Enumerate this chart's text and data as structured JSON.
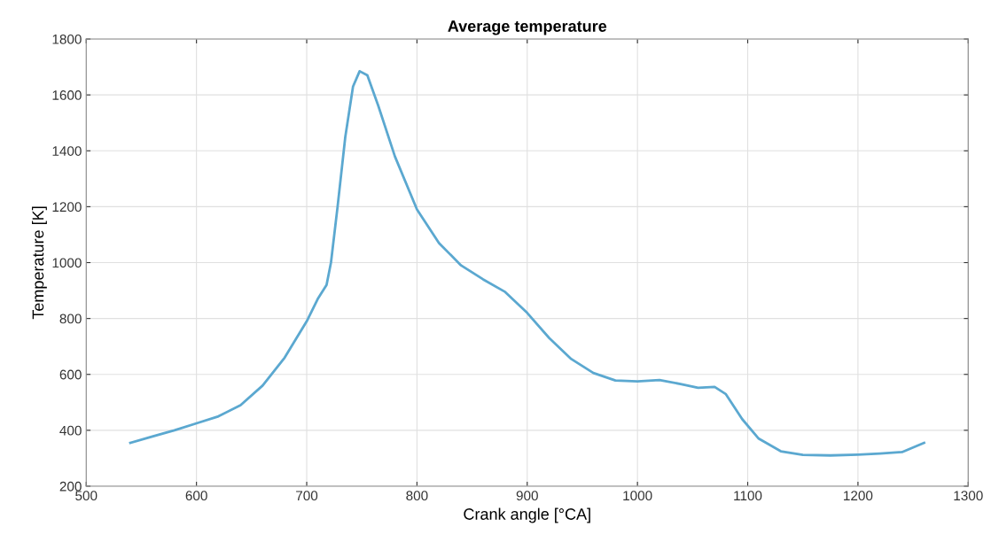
{
  "chart_data": {
    "type": "line",
    "title": "Average temperature",
    "xlabel": "Crank angle [°CA]",
    "ylabel": "Temperature [K]",
    "xlim": [
      500,
      1300
    ],
    "xticks": [
      500,
      600,
      700,
      800,
      900,
      1000,
      1100,
      1200,
      1300
    ],
    "ylim": [
      200,
      1800
    ],
    "yticks": [
      200,
      400,
      600,
      800,
      1000,
      1200,
      1400,
      1600,
      1800
    ],
    "grid": true,
    "series": [
      {
        "color": "#5ba8d0",
        "x": [
          540,
          560,
          580,
          600,
          620,
          640,
          660,
          680,
          700,
          710,
          718,
          722,
          728,
          735,
          742,
          748,
          755,
          765,
          780,
          800,
          820,
          840,
          860,
          880,
          900,
          920,
          940,
          960,
          980,
          1000,
          1020,
          1040,
          1055,
          1070,
          1080,
          1095,
          1110,
          1130,
          1150,
          1175,
          1200,
          1220,
          1240,
          1260
        ],
        "values": [
          355,
          378,
          400,
          425,
          450,
          490,
          560,
          660,
          790,
          870,
          920,
          1000,
          1200,
          1450,
          1630,
          1685,
          1670,
          1560,
          1380,
          1190,
          1070,
          990,
          940,
          895,
          820,
          730,
          655,
          605,
          578,
          575,
          580,
          565,
          552,
          555,
          530,
          440,
          370,
          325,
          312,
          310,
          313,
          317,
          322,
          355
        ]
      }
    ]
  }
}
